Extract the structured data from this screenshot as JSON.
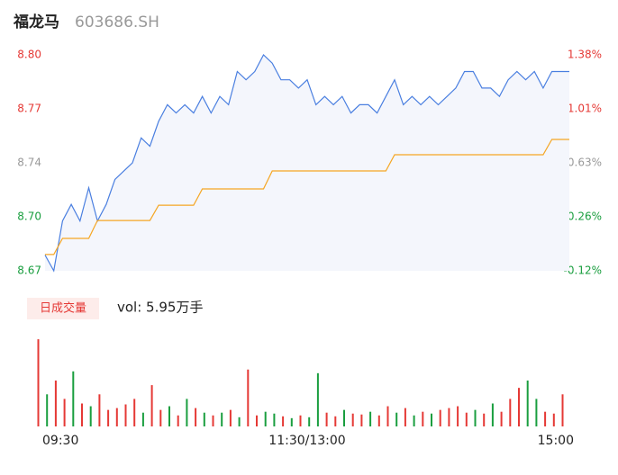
{
  "header": {
    "name": "福龙马",
    "code": "603686.SH"
  },
  "chart_data": [
    {
      "type": "line",
      "x": [
        0,
        4,
        8,
        12,
        16,
        20,
        24,
        28,
        32,
        36,
        40,
        44,
        48,
        52,
        56,
        60,
        64,
        68,
        72,
        76,
        80,
        84,
        88,
        92,
        96,
        100,
        104,
        108,
        112,
        116,
        120,
        124,
        128,
        132,
        136,
        140,
        144,
        148,
        152,
        156,
        160,
        164,
        168,
        172,
        176,
        180,
        184,
        188,
        192,
        196,
        200,
        204,
        208,
        212,
        216,
        220,
        224,
        228,
        232,
        236,
        240
      ],
      "xlim": [
        0,
        240
      ],
      "xticks": [
        {
          "value": 0,
          "label": "09:30"
        },
        {
          "value": 120,
          "label": "11:30/13:00"
        },
        {
          "value": 240,
          "label": "15:00"
        }
      ],
      "ylim": [
        8.67,
        8.8
      ],
      "yticks": [
        8.67,
        {
          "value": 8.7025,
          "label": "8.70"
        },
        {
          "value": 8.735,
          "label": "8.74"
        },
        {
          "value": 8.7675,
          "label": "8.77"
        },
        {
          "value": 8.8,
          "label": "8.80"
        }
      ],
      "y2lim": [
        -0.12,
        1.38
      ],
      "y2ticks": [
        {
          "value": -0.12,
          "label": "-0.12%"
        },
        {
          "value": 0.255,
          "label": "0.26%"
        },
        {
          "value": 0.63,
          "label": "0.63%"
        },
        {
          "value": 1.005,
          "label": "1.01%"
        },
        {
          "value": 1.38,
          "label": "1.38%"
        }
      ],
      "tick_colors": [
        "#1a9e3f",
        "#1a9e3f",
        "#999999",
        "#e53935",
        "#e53935"
      ],
      "area_color": "#f4f6fc",
      "series": [
        {
          "color": "#4a7fe0",
          "values": [
            8.6795,
            8.67,
            8.7,
            8.71,
            8.7,
            8.72,
            8.7,
            8.71,
            8.725,
            8.73,
            8.735,
            8.75,
            8.745,
            8.76,
            8.77,
            8.765,
            8.77,
            8.765,
            8.775,
            8.765,
            8.775,
            8.77,
            8.79,
            8.785,
            8.79,
            8.8,
            8.795,
            8.785,
            8.785,
            8.78,
            8.785,
            8.77,
            8.775,
            8.77,
            8.775,
            8.765,
            8.77,
            8.77,
            8.765,
            8.775,
            8.785,
            8.77,
            8.775,
            8.77,
            8.775,
            8.77,
            8.775,
            8.78,
            8.79,
            8.79,
            8.78,
            8.78,
            8.775,
            8.785,
            8.79,
            8.785,
            8.79,
            8.78,
            8.79,
            8.79,
            8.79
          ]
        },
        {
          "color": "#f5a623",
          "values": [
            8.6798,
            8.6798,
            8.6895,
            8.6895,
            8.6895,
            8.6895,
            8.7003,
            8.7003,
            8.7003,
            8.7003,
            8.7003,
            8.7003,
            8.7003,
            8.7095,
            8.7095,
            8.7095,
            8.7095,
            8.7095,
            8.7193,
            8.7193,
            8.7193,
            8.7193,
            8.7193,
            8.7193,
            8.7193,
            8.7193,
            8.7301,
            8.7301,
            8.7301,
            8.7301,
            8.7301,
            8.7301,
            8.7301,
            8.7301,
            8.7301,
            8.7301,
            8.7301,
            8.7301,
            8.7301,
            8.7301,
            8.7399,
            8.7399,
            8.7399,
            8.7399,
            8.7399,
            8.7399,
            8.7399,
            8.7399,
            8.7399,
            8.7399,
            8.7399,
            8.7399,
            8.7399,
            8.7399,
            8.7399,
            8.7399,
            8.7399,
            8.7399,
            8.7491,
            8.7491,
            8.7491
          ]
        }
      ]
    },
    {
      "type": "volume",
      "badge": "日成交量",
      "summary": "vol: 5.95万手",
      "ylim": [
        0,
        1000
      ],
      "values": [
        950,
        350,
        500,
        300,
        600,
        250,
        220,
        350,
        180,
        200,
        240,
        300,
        150,
        450,
        180,
        220,
        120,
        300,
        200,
        150,
        120,
        150,
        180,
        100,
        620,
        120,
        160,
        140,
        110,
        90,
        120,
        100,
        580,
        150,
        110,
        180,
        140,
        130,
        160,
        120,
        220,
        150,
        200,
        120,
        160,
        140,
        180,
        200,
        220,
        150,
        180,
        140,
        250,
        160,
        300,
        420,
        500,
        300,
        160,
        140,
        350
      ],
      "colors": [
        "#e53935",
        "#1a9e3f",
        "#e53935",
        "#e53935",
        "#1a9e3f",
        "#e53935",
        "#1a9e3f",
        "#e53935",
        "#e53935",
        "#e53935",
        "#e53935",
        "#e53935",
        "#1a9e3f",
        "#e53935",
        "#e53935",
        "#1a9e3f",
        "#e53935",
        "#1a9e3f",
        "#e53935",
        "#1a9e3f",
        "#e53935",
        "#1a9e3f",
        "#e53935",
        "#1a9e3f",
        "#e53935",
        "#e53935",
        "#1a9e3f",
        "#1a9e3f",
        "#e53935",
        "#1a9e3f",
        "#e53935",
        "#1a9e3f",
        "#1a9e3f",
        "#e53935",
        "#e53935",
        "#1a9e3f",
        "#e53935",
        "#e53935",
        "#1a9e3f",
        "#e53935",
        "#e53935",
        "#1a9e3f",
        "#e53935",
        "#1a9e3f",
        "#e53935",
        "#1a9e3f",
        "#e53935",
        "#e53935",
        "#e53935",
        "#e53935",
        "#1a9e3f",
        "#e53935",
        "#1a9e3f",
        "#e53935",
        "#e53935",
        "#e53935",
        "#1a9e3f",
        "#1a9e3f",
        "#e53935",
        "#e53935",
        "#e53935"
      ]
    }
  ]
}
